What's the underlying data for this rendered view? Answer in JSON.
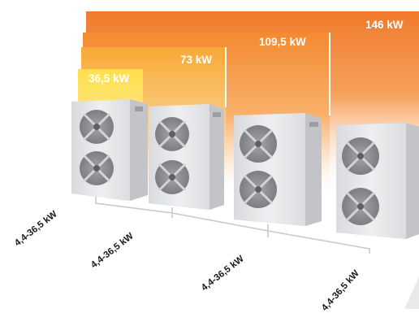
{
  "capacity_labels": [
    "36,5 kW",
    "73 kW",
    "109,5 kW",
    "146 kW"
  ],
  "unit_ratings": [
    "4,4-36,5 kW",
    "4,4-36,5 kW",
    "4,4-36,5 kW",
    "4,4-36,5 kW"
  ],
  "colors": {
    "orange": "#f07a2c",
    "amber": "#f8b23a",
    "yellow": "#ffe04a",
    "unit_body": "#e6e7ea",
    "fan": "#8d8f93",
    "pipe": "#c8c8c8"
  }
}
